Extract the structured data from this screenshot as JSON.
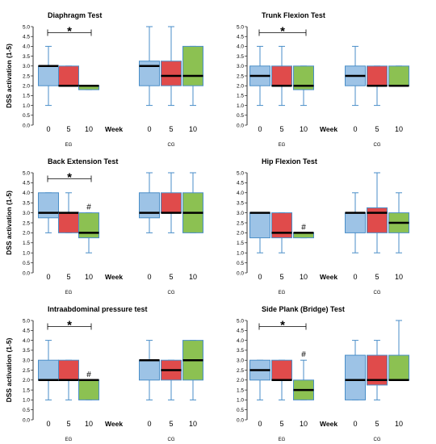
{
  "figure": {
    "y_axis_label": "DSS activation (1-5)",
    "week_label": "Week"
  },
  "colors": {
    "week0": "#9dc3e6",
    "week5": "#e04b4b",
    "week10": "#8cc152",
    "edge": "#4a8ec8",
    "median": "#000000"
  },
  "chart_data": [
    {
      "type": "box",
      "title": "Diaphragm Test",
      "ylim": [
        0.0,
        5.0
      ],
      "y_ticks": [
        "0.0",
        "0.5",
        "1.0",
        "1.5",
        "2.0",
        "2.5",
        "3.0",
        "3.5",
        "4.0",
        "4.5",
        "5.0"
      ],
      "week_ticks": [
        "0",
        "5",
        "10"
      ],
      "groups": [
        {
          "name": "EG",
          "boxes": [
            {
              "week": "0",
              "min": 1.0,
              "q1": 2.0,
              "median": 3.0,
              "q3": 3.0,
              "max": 4.0
            },
            {
              "week": "5",
              "min": 2.0,
              "q1": 2.0,
              "median": 2.0,
              "q3": 3.0,
              "max": 3.0
            },
            {
              "week": "10",
              "min": 1.8,
              "q1": 1.8,
              "median": 2.0,
              "q3": 2.0,
              "max": 2.0
            }
          ]
        },
        {
          "name": "CG",
          "boxes": [
            {
              "week": "0",
              "min": 1.0,
              "q1": 2.0,
              "median": 3.0,
              "q3": 3.25,
              "max": 5.0
            },
            {
              "week": "5",
              "min": 1.0,
              "q1": 2.0,
              "median": 2.5,
              "q3": 3.25,
              "max": 5.0
            },
            {
              "week": "10",
              "min": 1.0,
              "q1": 2.0,
              "median": 2.5,
              "q3": 4.0,
              "max": 4.0
            }
          ]
        }
      ],
      "significance": {
        "star": "*",
        "hash": ""
      }
    },
    {
      "type": "box",
      "title": "Trunk Flexion Test",
      "ylim": [
        0.0,
        5.0
      ],
      "y_ticks": [
        "0.0",
        "0.5",
        "1.0",
        "1.5",
        "2.0",
        "2.5",
        "3.0",
        "3.5",
        "4.0",
        "4.5",
        "5.0"
      ],
      "week_ticks": [
        "0",
        "5",
        "10"
      ],
      "groups": [
        {
          "name": "EG",
          "boxes": [
            {
              "week": "0",
              "min": 1.0,
              "q1": 2.0,
              "median": 2.5,
              "q3": 3.0,
              "max": 4.0
            },
            {
              "week": "5",
              "min": 1.0,
              "q1": 2.0,
              "median": 2.0,
              "q3": 3.0,
              "max": 4.0
            },
            {
              "week": "10",
              "min": 1.0,
              "q1": 1.8,
              "median": 2.0,
              "q3": 3.0,
              "max": 3.0
            }
          ]
        },
        {
          "name": "CG",
          "boxes": [
            {
              "week": "0",
              "min": 1.0,
              "q1": 2.0,
              "median": 2.5,
              "q3": 3.0,
              "max": 4.0
            },
            {
              "week": "5",
              "min": 1.0,
              "q1": 2.0,
              "median": 2.0,
              "q3": 3.0,
              "max": 3.0
            },
            {
              "week": "10",
              "min": 2.0,
              "q1": 2.0,
              "median": 2.0,
              "q3": 3.0,
              "max": 3.0
            }
          ]
        }
      ],
      "significance": {
        "star": "*",
        "hash": ""
      }
    },
    {
      "type": "box",
      "title": "Back Extension Test",
      "ylim": [
        0.0,
        5.0
      ],
      "y_ticks": [
        "0.0",
        "0.5",
        "1.0",
        "1.5",
        "2.0",
        "2.5",
        "3.0",
        "3.5",
        "4.0",
        "4.5",
        "5.0"
      ],
      "week_ticks": [
        "0",
        "5",
        "10"
      ],
      "groups": [
        {
          "name": "EG",
          "boxes": [
            {
              "week": "0",
              "min": 2.0,
              "q1": 2.75,
              "median": 3.0,
              "q3": 4.0,
              "max": 4.0
            },
            {
              "week": "5",
              "min": 2.0,
              "q1": 2.0,
              "median": 3.0,
              "q3": 3.0,
              "max": 4.0
            },
            {
              "week": "10",
              "min": 1.0,
              "q1": 1.75,
              "median": 2.0,
              "q3": 3.0,
              "max": 3.0
            }
          ]
        },
        {
          "name": "CG",
          "boxes": [
            {
              "week": "0",
              "min": 2.0,
              "q1": 2.75,
              "median": 3.0,
              "q3": 4.0,
              "max": 5.0
            },
            {
              "week": "5",
              "min": 2.0,
              "q1": 3.0,
              "median": 3.0,
              "q3": 4.0,
              "max": 5.0
            },
            {
              "week": "10",
              "min": 2.0,
              "q1": 2.0,
              "median": 3.0,
              "q3": 4.0,
              "max": 5.0
            }
          ]
        }
      ],
      "significance": {
        "star": "*",
        "hash": "#"
      }
    },
    {
      "type": "box",
      "title": "Hip Flexion Test",
      "ylim": [
        0.0,
        5.0
      ],
      "y_ticks": [
        "0.0",
        "0.5",
        "1.0",
        "1.5",
        "2.0",
        "2.5",
        "3.0",
        "3.5",
        "4.0",
        "4.5",
        "5.0"
      ],
      "week_ticks": [
        "0",
        "5",
        "10"
      ],
      "groups": [
        {
          "name": "EG",
          "boxes": [
            {
              "week": "0",
              "min": 1.0,
              "q1": 1.75,
              "median": 3.0,
              "q3": 3.0,
              "max": 3.0
            },
            {
              "week": "5",
              "min": 1.0,
              "q1": 1.75,
              "median": 2.0,
              "q3": 3.0,
              "max": 3.0
            },
            {
              "week": "10",
              "min": 1.75,
              "q1": 1.75,
              "median": 2.0,
              "q3": 2.0,
              "max": 2.0
            }
          ]
        },
        {
          "name": "CG",
          "boxes": [
            {
              "week": "0",
              "min": 1.0,
              "q1": 2.0,
              "median": 3.0,
              "q3": 3.0,
              "max": 4.0
            },
            {
              "week": "5",
              "min": 1.0,
              "q1": 2.0,
              "median": 3.0,
              "q3": 3.25,
              "max": 5.0
            },
            {
              "week": "10",
              "min": 1.0,
              "q1": 2.0,
              "median": 2.5,
              "q3": 3.0,
              "max": 4.0
            }
          ]
        }
      ],
      "significance": {
        "star": "",
        "hash": "#"
      }
    },
    {
      "type": "box",
      "title": "Intraabdominal pressure test",
      "ylim": [
        0.0,
        5.0
      ],
      "y_ticks": [
        "0.0",
        "0.5",
        "1.0",
        "1.5",
        "2.0",
        "2.5",
        "3.0",
        "3.5",
        "4.0",
        "4.5",
        "5.0"
      ],
      "week_ticks": [
        "0",
        "5",
        "10"
      ],
      "groups": [
        {
          "name": "EG",
          "boxes": [
            {
              "week": "0",
              "min": 1.0,
              "q1": 2.0,
              "median": 2.0,
              "q3": 3.0,
              "max": 4.0
            },
            {
              "week": "5",
              "min": 1.0,
              "q1": 2.0,
              "median": 2.0,
              "q3": 3.0,
              "max": 3.0
            },
            {
              "week": "10",
              "min": 1.0,
              "q1": 1.0,
              "median": 2.0,
              "q3": 2.0,
              "max": 2.0
            }
          ]
        },
        {
          "name": "CG",
          "boxes": [
            {
              "week": "0",
              "min": 1.0,
              "q1": 2.0,
              "median": 3.0,
              "q3": 3.0,
              "max": 4.0
            },
            {
              "week": "5",
              "min": 1.0,
              "q1": 2.0,
              "median": 2.5,
              "q3": 3.0,
              "max": 3.0
            },
            {
              "week": "10",
              "min": 1.0,
              "q1": 2.0,
              "median": 3.0,
              "q3": 4.0,
              "max": 4.0
            }
          ]
        }
      ],
      "significance": {
        "star": "*",
        "hash": "#"
      }
    },
    {
      "type": "box",
      "title": "Side Plank (Bridge) Test",
      "ylim": [
        0.0,
        5.0
      ],
      "y_ticks": [
        "0.0",
        "0.5",
        "1.0",
        "1.5",
        "2.0",
        "2.5",
        "3.0",
        "3.5",
        "4.0",
        "4.5",
        "5.0"
      ],
      "week_ticks": [
        "0",
        "5",
        "10"
      ],
      "groups": [
        {
          "name": "EG",
          "boxes": [
            {
              "week": "0",
              "min": 1.0,
              "q1": 2.0,
              "median": 2.5,
              "q3": 3.0,
              "max": 3.0
            },
            {
              "week": "5",
              "min": 1.0,
              "q1": 2.0,
              "median": 2.0,
              "q3": 3.0,
              "max": 3.0
            },
            {
              "week": "10",
              "min": 1.0,
              "q1": 1.0,
              "median": 1.5,
              "q3": 2.0,
              "max": 3.0
            }
          ]
        },
        {
          "name": "CG",
          "boxes": [
            {
              "week": "0",
              "min": 1.0,
              "q1": 1.0,
              "median": 2.0,
              "q3": 3.25,
              "max": 4.0
            },
            {
              "week": "5",
              "min": 1.0,
              "q1": 1.75,
              "median": 2.0,
              "q3": 3.25,
              "max": 4.0
            },
            {
              "week": "10",
              "min": 2.0,
              "q1": 2.0,
              "median": 2.0,
              "q3": 3.25,
              "max": 5.0
            }
          ]
        }
      ],
      "significance": {
        "star": "*",
        "hash": "#"
      }
    }
  ]
}
